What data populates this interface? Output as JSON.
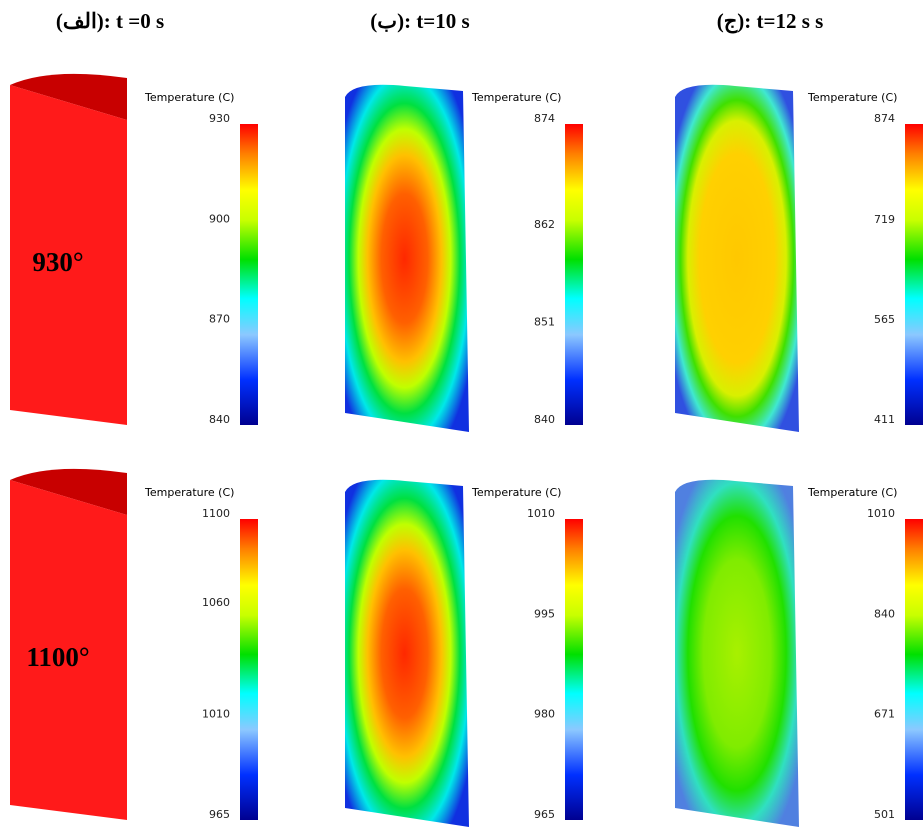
{
  "columns": [
    "(الف): t =0 s",
    "(ب): t=10 s",
    "(ج): t=12 s s"
  ],
  "panels": [
    {
      "colorbar_title": "Temperature (C)",
      "ticks": [
        930,
        900,
        870,
        840
      ],
      "label": "930°"
    },
    {
      "colorbar_title": "Temperature (C)",
      "ticks": [
        874,
        862,
        851,
        840
      ]
    },
    {
      "colorbar_title": "Temperature (C)",
      "ticks": [
        874,
        719,
        565,
        411
      ]
    },
    {
      "colorbar_title": "Temperature (C)",
      "ticks": [
        1100,
        1060,
        1010,
        965
      ],
      "label": "1100°"
    },
    {
      "colorbar_title": "Temperature (C)",
      "ticks": [
        1010,
        995,
        980,
        965
      ]
    },
    {
      "colorbar_title": "Temperature (C)",
      "ticks": [
        1010,
        840,
        671,
        501
      ]
    }
  ]
}
